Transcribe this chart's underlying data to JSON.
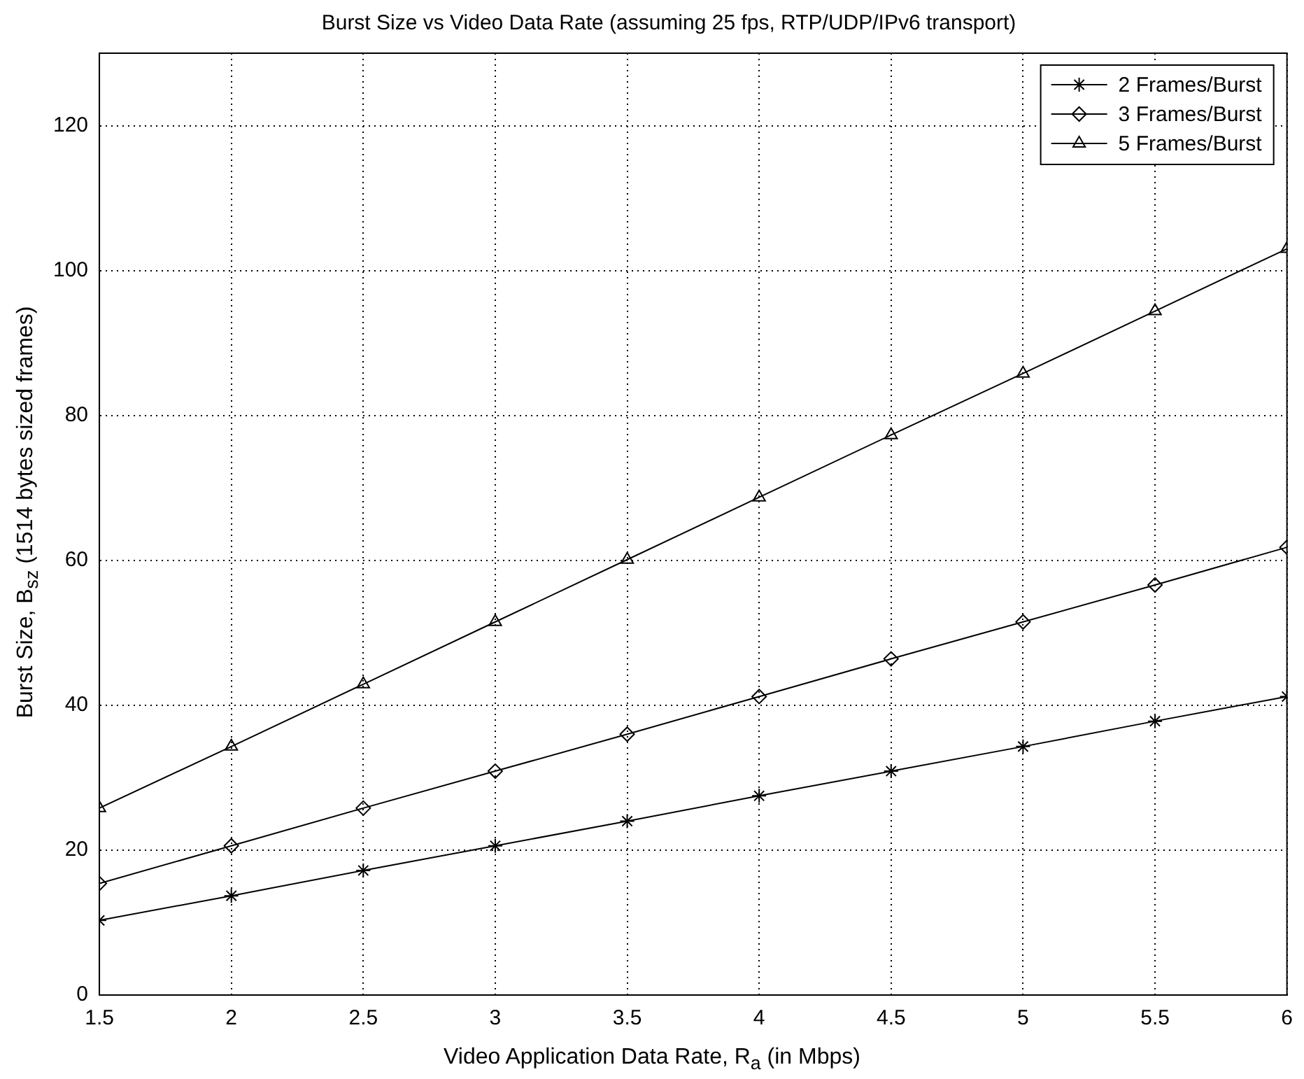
{
  "chart_data": {
    "type": "line",
    "title": "Burst Size vs Video Data Rate (assuming 25 fps, RTP/UDP/IPv6 transport)",
    "xlabel": "Video Application Data Rate, R$_{a}$ (in Mbps)",
    "ylabel": "Burst Size, B$_{sz}$ (1514 bytes sized frames)",
    "x": [
      1.5,
      2,
      2.5,
      3,
      3.5,
      4,
      4.5,
      5,
      5.5,
      6
    ],
    "series": [
      {
        "name": "2 Frames/Burst",
        "color": "#000000",
        "marker": "cross",
        "values": [
          10.3,
          13.7,
          17.2,
          20.6,
          24.0,
          27.5,
          30.9,
          34.3,
          37.8,
          41.2
        ]
      },
      {
        "name": "3 Frames/Burst",
        "color": "#000000",
        "marker": "diamond",
        "values": [
          15.4,
          20.6,
          25.8,
          30.9,
          36.0,
          41.2,
          46.4,
          51.5,
          56.6,
          61.8
        ]
      },
      {
        "name": "5 Frames/Burst",
        "color": "#000000",
        "marker": "triangle",
        "values": [
          25.8,
          34.3,
          42.9,
          51.5,
          60.1,
          68.7,
          77.3,
          85.8,
          94.4,
          103.0
        ]
      }
    ],
    "xlim": [
      1.5,
      6
    ],
    "xticks": [
      1.5,
      2,
      2.5,
      3,
      3.5,
      4,
      4.5,
      5,
      5.5,
      6
    ],
    "ylim": [
      0,
      130
    ],
    "yticks": [
      0,
      20,
      40,
      60,
      80,
      100,
      120
    ],
    "grid": true,
    "legend": "top right",
    "line_style": "solid"
  }
}
